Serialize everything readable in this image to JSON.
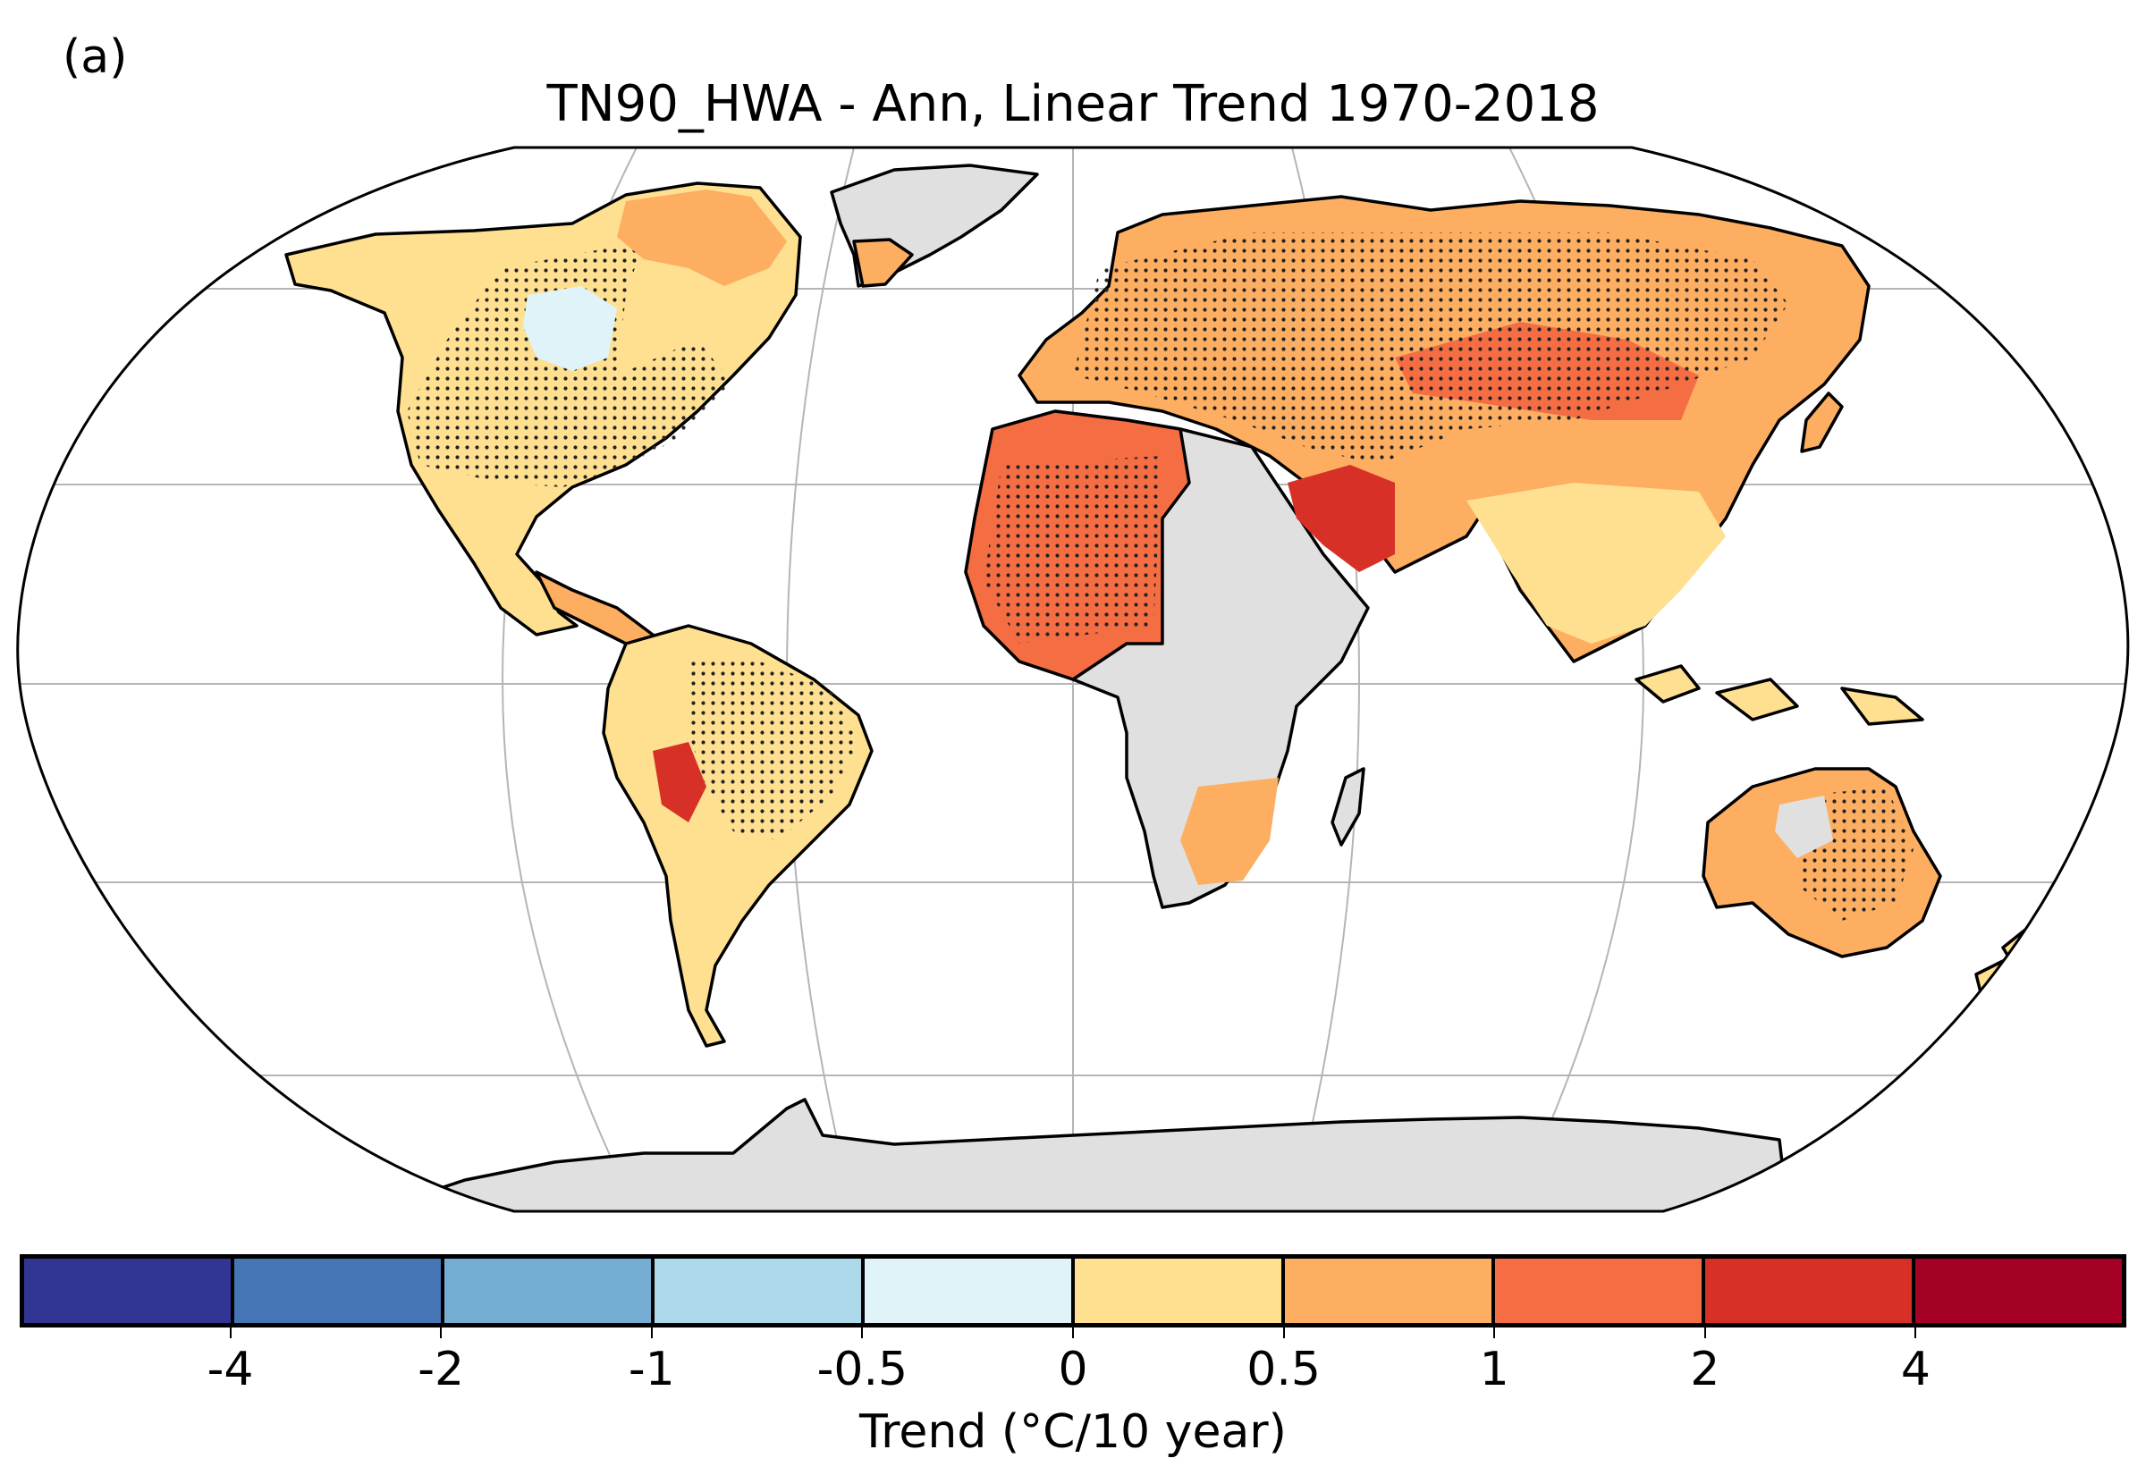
{
  "figure": {
    "panel_label": "(a)",
    "title": "TN90_HWA - Ann, Linear Trend 1970-2018"
  },
  "colorbar": {
    "title": "Trend (°C/10 year)",
    "tick_labels": [
      "-4",
      "-2",
      "-1",
      "-0.5",
      "0",
      "0.5",
      "1",
      "2",
      "4"
    ],
    "colors": [
      "#313695",
      "#4575b4",
      "#74add1",
      "#abd9e9",
      "#e0f3f8",
      "#fee090",
      "#fdae61",
      "#f46d43",
      "#d73027",
      "#a50026"
    ]
  },
  "map": {
    "projection": "Robinson",
    "gridlines": true,
    "no_data_color": "#e0e0e0",
    "stippling": "significant trend",
    "regions": [
      {
        "name": "Greenland",
        "fill": "#e0e0e0"
      },
      {
        "name": "Antarctica",
        "fill": "#e0e0e0"
      },
      {
        "name": "Central and Southern Africa",
        "fill": "#e0e0e0"
      },
      {
        "name": "North America",
        "fill": "#fee090"
      },
      {
        "name": "Northern Canada",
        "fill": "#fdae61"
      },
      {
        "name": "South America",
        "fill": "#fee090"
      },
      {
        "name": "Europe",
        "fill": "#fdae61"
      },
      {
        "name": "Sahara",
        "fill": "#f46d43"
      },
      {
        "name": "Middle East",
        "fill": "#d73027"
      },
      {
        "name": "Siberia and Central Asia",
        "fill": "#fdae61"
      },
      {
        "name": "South and East Asia",
        "fill": "#fee090"
      },
      {
        "name": "Australia",
        "fill": "#fdae61"
      }
    ]
  }
}
